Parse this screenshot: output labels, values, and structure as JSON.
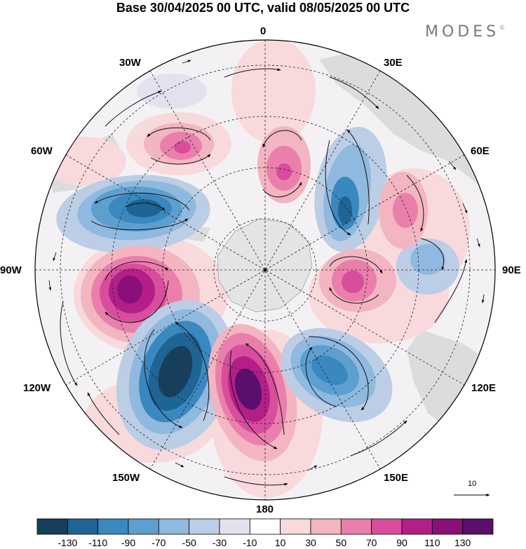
{
  "title": "Base 30/04/2025 00 UTC, valid 08/05/2025 00 UTC",
  "brand": {
    "name": "MODES",
    "mark": "©"
  },
  "longitude_labels": {
    "lon_0": "0",
    "lon_30e": "30E",
    "lon_60e": "60E",
    "lon_90e": "90E",
    "lon_120e": "120E",
    "lon_150e": "150E",
    "lon_180": "180",
    "lon_150w": "150W",
    "lon_120w": "120W",
    "lon_90w": "90W",
    "lon_60w": "60W",
    "lon_30w": "30W"
  },
  "vector_reference": {
    "label": "10"
  },
  "colorbar": {
    "labels": [
      "-130",
      "-110",
      "-90",
      "-70",
      "-50",
      "-30",
      "-10",
      "10",
      "30",
      "50",
      "70",
      "90",
      "110",
      "130"
    ],
    "colors": [
      "#173f5c",
      "#1e6494",
      "#3a88c0",
      "#5d9fcf",
      "#8fb9de",
      "#bccde6",
      "#e2e2ef",
      "#ffffff",
      "#f8d9dc",
      "#f2b5c1",
      "#ea7fac",
      "#d94d9d",
      "#b31f87",
      "#8b0f78",
      "#5a0f6d"
    ]
  },
  "map_colors": {
    "ocean": "#f4f1f4",
    "land": "#dcdcdc",
    "antarctica": "#e4e4e4"
  }
}
